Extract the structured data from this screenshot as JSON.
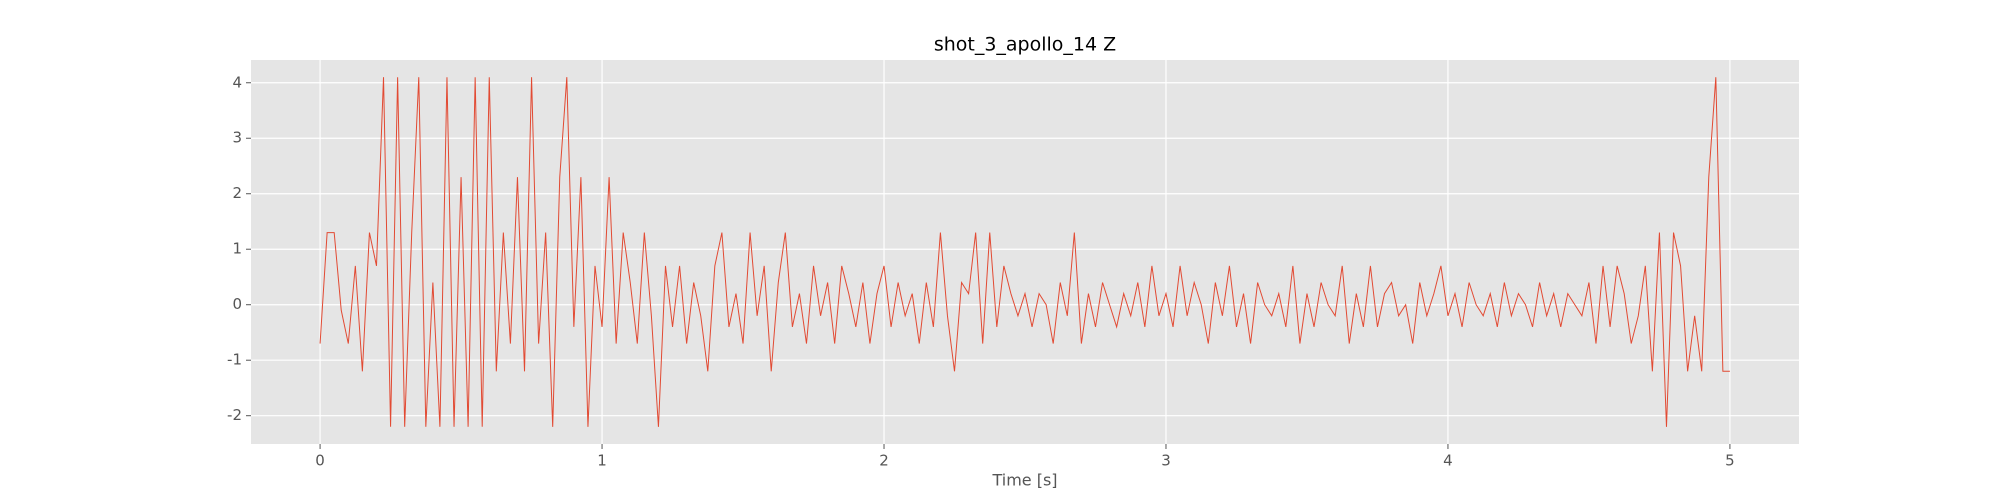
{
  "chart_data": {
    "type": "line",
    "title": "shot_3_apollo_14 Z",
    "x_label": "Time [s]",
    "x": [
      0,
      0.025,
      0.05,
      0.075,
      0.1,
      0.125,
      0.15,
      0.175,
      0.2,
      0.225,
      0.25,
      0.275,
      0.3,
      0.325,
      0.35,
      0.375,
      0.4,
      0.425,
      0.45,
      0.475,
      0.5,
      0.525,
      0.55,
      0.575,
      0.6,
      0.625,
      0.65,
      0.675,
      0.7,
      0.725,
      0.75,
      0.775,
      0.8,
      0.825,
      0.85,
      0.875,
      0.9,
      0.925,
      0.95,
      0.975,
      1,
      1.025,
      1.05,
      1.075,
      1.1,
      1.125,
      1.15,
      1.175,
      1.2,
      1.225,
      1.25,
      1.275,
      1.3,
      1.325,
      1.35,
      1.375,
      1.4,
      1.425,
      1.45,
      1.475,
      1.5,
      1.525,
      1.55,
      1.575,
      1.6,
      1.625,
      1.65,
      1.675,
      1.7,
      1.725,
      1.75,
      1.775,
      1.8,
      1.825,
      1.85,
      1.875,
      1.9,
      1.925,
      1.95,
      1.975,
      2,
      2.025,
      2.05,
      2.075,
      2.1,
      2.125,
      2.15,
      2.175,
      2.2,
      2.225,
      2.25,
      2.275,
      2.3,
      2.325,
      2.35,
      2.375,
      2.4,
      2.425,
      2.45,
      2.475,
      2.5,
      2.525,
      2.55,
      2.575,
      2.6,
      2.625,
      2.65,
      2.675,
      2.7,
      2.725,
      2.75,
      2.775,
      2.8,
      2.825,
      2.85,
      2.875,
      2.9,
      2.925,
      2.95,
      2.975,
      3,
      3.025,
      3.05,
      3.075,
      3.1,
      3.125,
      3.15,
      3.175,
      3.2,
      3.225,
      3.25,
      3.275,
      3.3,
      3.325,
      3.35,
      3.375,
      3.4,
      3.425,
      3.45,
      3.475,
      3.5,
      3.525,
      3.55,
      3.575,
      3.6,
      3.625,
      3.65,
      3.675,
      3.7,
      3.725,
      3.75,
      3.775,
      3.8,
      3.825,
      3.85,
      3.875,
      3.9,
      3.925,
      3.95,
      3.975,
      4,
      4.025,
      4.05,
      4.075,
      4.1,
      4.125,
      4.15,
      4.175,
      4.2,
      4.225,
      4.25,
      4.275,
      4.3,
      4.325,
      4.35,
      4.375,
      4.4,
      4.425,
      4.45,
      4.475,
      4.5,
      4.525,
      4.55,
      4.575,
      4.6,
      4.625,
      4.65,
      4.675,
      4.7,
      4.725,
      4.75,
      4.775,
      4.8,
      4.825,
      4.85,
      4.875,
      4.9,
      4.925,
      4.95,
      4.975,
      5
    ],
    "series": [
      {
        "color": "#E24A33",
        "values": [
          -0.7,
          1.3,
          1.3,
          -0.1,
          -0.7,
          0.7,
          -1.2,
          1.3,
          0.7,
          4.1,
          -2.2,
          4.1,
          -2.2,
          1.3,
          4.1,
          -2.2,
          0.4,
          -2.2,
          4.1,
          -2.2,
          2.3,
          -2.2,
          4.1,
          -2.2,
          4.1,
          -1.2,
          1.3,
          -0.7,
          2.3,
          -1.2,
          4.1,
          -0.7,
          1.3,
          -2.2,
          2.3,
          4.1,
          -0.4,
          2.3,
          -2.2,
          0.7,
          -0.4,
          2.3,
          -0.7,
          1.3,
          0.4,
          -0.7,
          1.3,
          -0.2,
          -2.2,
          0.7,
          -0.4,
          0.7,
          -0.7,
          0.4,
          -0.2,
          -1.2,
          0.7,
          1.3,
          -0.4,
          0.2,
          -0.7,
          1.3,
          -0.2,
          0.7,
          -1.2,
          0.4,
          1.3,
          -0.4,
          0.2,
          -0.7,
          0.7,
          -0.2,
          0.4,
          -0.7,
          0.7,
          0.2,
          -0.4,
          0.4,
          -0.7,
          0.2,
          0.7,
          -0.4,
          0.4,
          -0.2,
          0.2,
          -0.7,
          0.4,
          -0.4,
          1.3,
          -0.2,
          -1.2,
          0.4,
          0.2,
          1.3,
          -0.7,
          1.3,
          -0.4,
          0.7,
          0.2,
          -0.2,
          0.2,
          -0.4,
          0.2,
          0,
          -0.7,
          0.4,
          -0.2,
          1.3,
          -0.7,
          0.2,
          -0.4,
          0.4,
          0,
          -0.4,
          0.2,
          -0.2,
          0.4,
          -0.4,
          0.7,
          -0.2,
          0.2,
          -0.4,
          0.7,
          -0.2,
          0.4,
          0,
          -0.7,
          0.4,
          -0.2,
          0.7,
          -0.4,
          0.2,
          -0.7,
          0.4,
          0,
          -0.2,
          0.2,
          -0.4,
          0.7,
          -0.7,
          0.2,
          -0.4,
          0.4,
          0,
          -0.2,
          0.7,
          -0.7,
          0.2,
          -0.4,
          0.7,
          -0.4,
          0.2,
          0.4,
          -0.2,
          0,
          -0.7,
          0.4,
          -0.2,
          0.2,
          0.7,
          -0.2,
          0.2,
          -0.4,
          0.4,
          0,
          -0.2,
          0.2,
          -0.4,
          0.4,
          -0.2,
          0.2,
          0,
          -0.4,
          0.4,
          -0.2,
          0.2,
          -0.4,
          0.2,
          0,
          -0.2,
          0.4,
          -0.7,
          0.7,
          -0.4,
          0.7,
          0.2,
          -0.7,
          -0.2,
          0.7,
          -1.2,
          1.3,
          -2.2,
          1.3,
          0.7,
          -1.2,
          -0.2,
          -1.2,
          2.3,
          4.1,
          -1.2,
          -1.2
        ]
      }
    ],
    "xlim": [
      -0.245,
      5.245
    ],
    "ylim": [
      -2.51,
      4.41
    ],
    "xticks": [
      0,
      1,
      2,
      3,
      4,
      5
    ],
    "yticks": [
      -2,
      -1,
      0,
      1,
      2,
      3,
      4
    ],
    "grid": true
  }
}
